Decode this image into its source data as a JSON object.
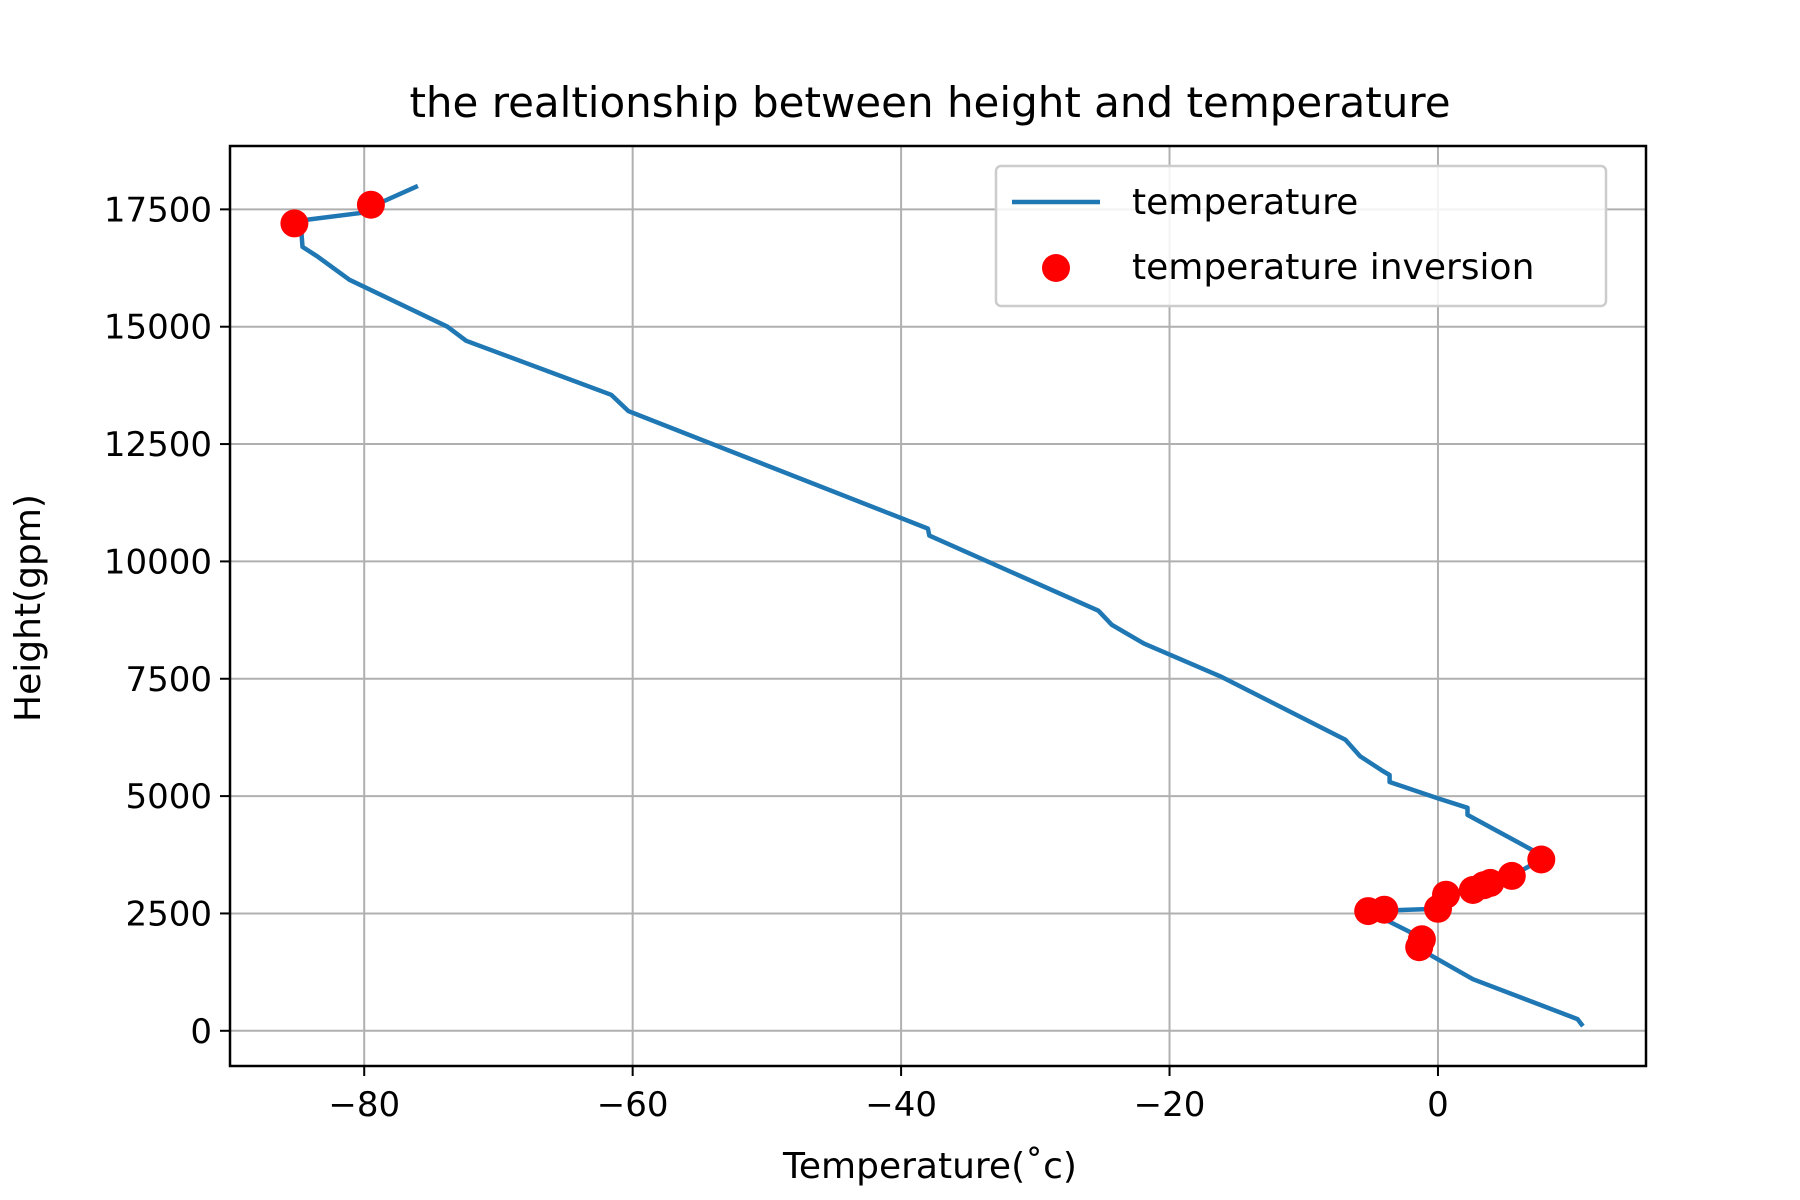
{
  "chart_data": {
    "type": "line",
    "title": "the realtionship between height and temperature",
    "xlabel": "Temperature(˚c)",
    "ylabel": "Height(gpm)",
    "xlim": [
      -90,
      15.5
    ],
    "ylim": [
      -750,
      18850
    ],
    "xticks": [
      -80,
      -60,
      -40,
      -20,
      0
    ],
    "xtick_labels": [
      "−80",
      "−60",
      "−40",
      "−20",
      "0"
    ],
    "yticks": [
      0,
      2500,
      5000,
      7500,
      10000,
      12500,
      15000,
      17500
    ],
    "ytick_labels": [
      "0",
      "2500",
      "5000",
      "7500",
      "10000",
      "12500",
      "15000",
      "17500"
    ],
    "grid": true,
    "legend_position": "upper-right",
    "colors": {
      "line": "#1f77b4",
      "points": "#ff0000"
    },
    "series": [
      {
        "name": "temperature",
        "type": "line",
        "points": [
          [
            10.8,
            100
          ],
          [
            10.4,
            250
          ],
          [
            2.6,
            1100
          ],
          [
            -1.4,
            1750
          ],
          [
            -1.3,
            1950
          ],
          [
            -1.7,
            2050
          ],
          [
            -5.2,
            2550
          ],
          [
            0,
            2600
          ],
          [
            0.5,
            2900
          ],
          [
            2.6,
            3000
          ],
          [
            3.6,
            3100
          ],
          [
            5.5,
            3300
          ],
          [
            7.7,
            3650
          ],
          [
            8,
            3700
          ],
          [
            2.2,
            4600
          ],
          [
            2.2,
            4750
          ],
          [
            0,
            4950
          ],
          [
            -3.6,
            5300
          ],
          [
            -3.6,
            5450
          ],
          [
            -4.2,
            5550
          ],
          [
            -5.8,
            5850
          ],
          [
            -6.9,
            6200
          ],
          [
            -16.2,
            7550
          ],
          [
            -21.9,
            8250
          ],
          [
            -24.3,
            8650
          ],
          [
            -25.3,
            8950
          ],
          [
            -37.9,
            10550
          ],
          [
            -38,
            10700
          ],
          [
            -60.3,
            13200
          ],
          [
            -61.6,
            13550
          ],
          [
            -72.4,
            14700
          ],
          [
            -73.8,
            15000
          ],
          [
            -81.1,
            16000
          ],
          [
            -83.5,
            16500
          ],
          [
            -84.6,
            16700
          ],
          [
            -84.7,
            17100
          ],
          [
            -85.1,
            17250
          ],
          [
            -79.5,
            17450
          ],
          [
            -79.5,
            17550
          ],
          [
            -76,
            18000
          ]
        ]
      },
      {
        "name": "temperature inversion",
        "type": "scatter",
        "points": [
          [
            -85.2,
            17200
          ],
          [
            -79.5,
            17600
          ],
          [
            -5.2,
            2550
          ],
          [
            -4,
            2580
          ],
          [
            -1.4,
            1780
          ],
          [
            -1.2,
            1950
          ],
          [
            0,
            2600
          ],
          [
            0.6,
            2900
          ],
          [
            2.6,
            3000
          ],
          [
            3.4,
            3100
          ],
          [
            3.9,
            3150
          ],
          [
            5.5,
            3300
          ],
          [
            7.7,
            3650
          ]
        ]
      }
    ]
  }
}
